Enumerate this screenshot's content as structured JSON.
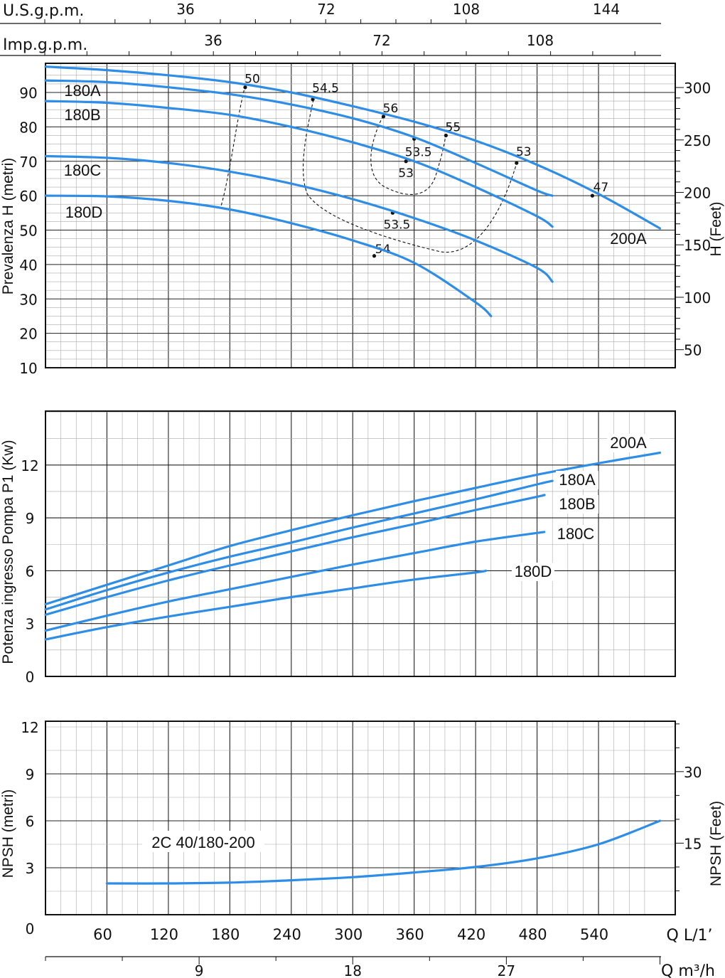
{
  "chart_data": [
    {
      "type": "line",
      "ylabel": "Prevalenza H (metri)",
      "y2label": "H (Feet)",
      "top_axes": [
        {
          "label": "U.S.g.p.m.",
          "ticks": [
            "36",
            "72",
            "108",
            "144"
          ]
        },
        {
          "label": "Imp.g.p.m.",
          "ticks": [
            "36",
            "72",
            "108"
          ]
        }
      ],
      "yticks": [
        "10",
        "20",
        "30",
        "40",
        "50",
        "60",
        "70",
        "80",
        "90"
      ],
      "y2ticks": [
        "50",
        "100",
        "150",
        "200",
        "250",
        "300"
      ],
      "ylim": [
        10,
        98
      ],
      "xlim": [
        0,
        600
      ],
      "series": [
        {
          "name": "200A",
          "x": [
            0,
            60,
            120,
            180,
            240,
            300,
            360,
            420,
            480,
            540,
            600
          ],
          "y": [
            97.5,
            96.5,
            95,
            93,
            90,
            86,
            81.5,
            76,
            69,
            60.5,
            50.5
          ]
        },
        {
          "name": "180A",
          "x": [
            0,
            60,
            120,
            180,
            240,
            300,
            360,
            420,
            480,
            495
          ],
          "y": [
            93.5,
            93,
            91.5,
            89.5,
            86.5,
            82.5,
            77,
            69.5,
            61.5,
            60
          ]
        },
        {
          "name": "180B",
          "x": [
            0,
            60,
            120,
            180,
            240,
            300,
            360,
            420,
            480,
            495
          ],
          "y": [
            87.5,
            87,
            85.5,
            83.5,
            80,
            75.5,
            70,
            62.5,
            54,
            51
          ]
        },
        {
          "name": "180C",
          "x": [
            0,
            60,
            120,
            180,
            240,
            300,
            360,
            420,
            480,
            495
          ],
          "y": [
            71.5,
            71,
            69.5,
            67,
            63.5,
            59,
            53.5,
            47,
            39,
            35
          ]
        },
        {
          "name": "180D",
          "x": [
            0,
            60,
            120,
            180,
            240,
            300,
            360,
            420,
            435
          ],
          "y": [
            60,
            59.8,
            58.5,
            56,
            52,
            47,
            40.5,
            29,
            25
          ]
        }
      ],
      "efficiency_points": [
        {
          "label": "50",
          "x": 195,
          "y": 91.5
        },
        {
          "label": "54.5",
          "x": 261,
          "y": 88
        },
        {
          "label": "56",
          "x": 330,
          "y": 83
        },
        {
          "label": "55",
          "x": 391,
          "y": 77.5
        },
        {
          "label": "53.5",
          "x": 360,
          "y": 76.5
        },
        {
          "label": "53",
          "x": 352,
          "y": 70
        },
        {
          "label": "53",
          "x": 460,
          "y": 69.5
        },
        {
          "label": "47",
          "x": 534,
          "y": 60
        },
        {
          "label": "53.5",
          "x": 339,
          "y": 55
        },
        {
          "label": "54",
          "x": 321,
          "y": 42.5
        }
      ]
    },
    {
      "type": "line",
      "ylabel": "Potenza ingresso Pompa P1 (Kw)",
      "yticks": [
        "0",
        "3",
        "6",
        "9",
        "12"
      ],
      "ylim": [
        0,
        15
      ],
      "xlim": [
        0,
        600
      ],
      "series": [
        {
          "name": "200A",
          "x": [
            0,
            60,
            120,
            180,
            240,
            300,
            360,
            420,
            480,
            540,
            600
          ],
          "y": [
            4.1,
            5.2,
            6.3,
            7.4,
            8.3,
            9.15,
            9.95,
            10.7,
            11.45,
            12.1,
            12.7
          ]
        },
        {
          "name": "180A",
          "x": [
            0,
            60,
            120,
            180,
            240,
            300,
            360,
            420,
            480,
            495
          ],
          "y": [
            3.8,
            4.9,
            5.9,
            6.8,
            7.6,
            8.45,
            9.25,
            10.05,
            10.9,
            11.1
          ]
        },
        {
          "name": "180B",
          "x": [
            0,
            60,
            120,
            180,
            240,
            300,
            360,
            420,
            480,
            487
          ],
          "y": [
            3.5,
            4.5,
            5.45,
            6.3,
            7.1,
            7.9,
            8.65,
            9.45,
            10.2,
            10.3
          ]
        },
        {
          "name": "180C",
          "x": [
            0,
            60,
            120,
            180,
            240,
            300,
            360,
            420,
            487
          ],
          "y": [
            2.6,
            3.45,
            4.25,
            4.95,
            5.65,
            6.35,
            7.0,
            7.65,
            8.2
          ]
        },
        {
          "name": "180D",
          "x": [
            0,
            60,
            120,
            180,
            240,
            300,
            360,
            420,
            430
          ],
          "y": [
            2.1,
            2.8,
            3.4,
            3.95,
            4.5,
            5.0,
            5.5,
            5.9,
            6.0
          ]
        }
      ]
    },
    {
      "type": "line",
      "ylabel": "NPSH (metri)",
      "y2label": "NPSH (Feet)",
      "yticks": [
        "0",
        "3",
        "6",
        "9",
        "12"
      ],
      "y2ticks": [
        "15",
        "30"
      ],
      "ylim": [
        0,
        12.5
      ],
      "xlim": [
        0,
        600
      ],
      "annotation": "2C 40/180-200",
      "xticks": [
        "60",
        "120",
        "180",
        "240",
        "300",
        "360",
        "420",
        "480",
        "540"
      ],
      "xlabel": "Q L/1’",
      "x2ticks": [
        "9",
        "18",
        "27"
      ],
      "x2label": "Q m³/h",
      "series": [
        {
          "name": "2C 40/180-200",
          "x": [
            60,
            120,
            180,
            240,
            300,
            360,
            420,
            480,
            540,
            600
          ],
          "y": [
            2.0,
            2.0,
            2.05,
            2.2,
            2.4,
            2.7,
            3.05,
            3.6,
            4.5,
            6.0
          ]
        }
      ]
    }
  ],
  "colors": {
    "curve": "#2e8de6",
    "grid_major": "#222222",
    "grid_minor": "#aaaaaa"
  }
}
